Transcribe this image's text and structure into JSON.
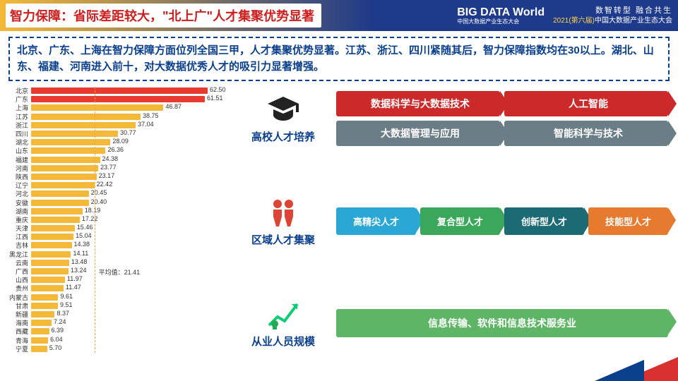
{
  "header": {
    "title": "智力保障：省际差距较大，\"北上广\"人才集聚优势显著",
    "logo_top": "BIG DATA World",
    "logo_sub": "中国大数据产业生态大会",
    "right_l1": "数智转型  融合共生",
    "right_l2a": "2021(第六届)",
    "right_l2b": "中国大数据产业生态大会"
  },
  "summary": "北京、广东、上海在智力保障方面位列全国三甲，人才集聚优势显著。江苏、浙江、四川紧随其后，智力保障指数均在30以上。湖北、山东、福建、河南进入前十，对大数据优秀人才的吸引力显著增强。",
  "chart": {
    "max": 62.5,
    "avg_label": "平均值：21.41",
    "avg_value": 21.41,
    "colors": {
      "top": "#e63b2e",
      "other": "#f4b938"
    },
    "rows": [
      {
        "name": "北京",
        "v": 62.5,
        "c": "top"
      },
      {
        "name": "广东",
        "v": 61.51,
        "c": "top"
      },
      {
        "name": "上海",
        "v": 46.87
      },
      {
        "name": "江苏",
        "v": 38.75
      },
      {
        "name": "浙江",
        "v": 37.04
      },
      {
        "name": "四川",
        "v": 30.77
      },
      {
        "name": "湖北",
        "v": 28.09
      },
      {
        "name": "山东",
        "v": 26.36
      },
      {
        "name": "福建",
        "v": 24.38
      },
      {
        "name": "河南",
        "v": 23.77
      },
      {
        "name": "陕西",
        "v": 23.17
      },
      {
        "name": "辽宁",
        "v": 22.42
      },
      {
        "name": "河北",
        "v": 20.45
      },
      {
        "name": "安徽",
        "v": 20.4
      },
      {
        "name": "湖南",
        "v": 18.19
      },
      {
        "name": "重庆",
        "v": 17.22
      },
      {
        "name": "天津",
        "v": 15.46
      },
      {
        "name": "江西",
        "v": 15.04
      },
      {
        "name": "吉林",
        "v": 14.38
      },
      {
        "name": "黑龙江",
        "v": 14.11
      },
      {
        "name": "云南",
        "v": 13.48
      },
      {
        "name": "广西",
        "v": 13.24
      },
      {
        "name": "山西",
        "v": 11.97
      },
      {
        "name": "贵州",
        "v": 11.47
      },
      {
        "name": "内蒙古",
        "v": 9.61
      },
      {
        "name": "甘肃",
        "v": 9.51
      },
      {
        "name": "新疆",
        "v": 8.37
      },
      {
        "name": "海南",
        "v": 7.24
      },
      {
        "name": "西藏",
        "v": 6.39
      },
      {
        "name": "青海",
        "v": 6.04
      },
      {
        "name": "宁夏",
        "v": 5.7
      }
    ]
  },
  "sections": [
    {
      "label": "高校人才培养",
      "icon": "cap",
      "arrows_rows": [
        [
          {
            "text": "数据科学与大数据技术",
            "color": "#cc2a2a"
          },
          {
            "text": "人工智能",
            "color": "#cc2a2a"
          }
        ],
        [
          {
            "text": "大数据管理与应用",
            "color": "#6b7d86"
          },
          {
            "text": "智能科学与技术",
            "color": "#6b7d86"
          }
        ]
      ]
    },
    {
      "label": "区域人才集聚",
      "icon": "people",
      "arrows_rows": [
        [
          {
            "text": "高精尖人才",
            "color": "#2aa7d4"
          },
          {
            "text": "复合型人才",
            "color": "#3aa75a"
          },
          {
            "text": "创新型人才",
            "color": "#1c6b74"
          },
          {
            "text": "技能型人才",
            "color": "#e67a2e"
          }
        ]
      ],
      "small": true
    },
    {
      "label": "从业人员规模",
      "icon": "growth",
      "arrows_rows": [
        [
          {
            "text": "信息传输、软件和信息技术服务业",
            "color": "#5fb566"
          }
        ]
      ],
      "wide": true
    }
  ]
}
